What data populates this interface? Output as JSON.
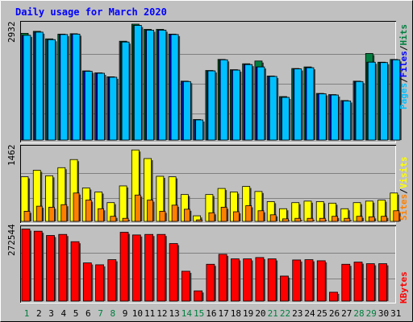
{
  "chart_data": [
    {
      "type": "bar",
      "title": "Daily usage for March 2020",
      "categories": [
        "1",
        "2",
        "3",
        "4",
        "5",
        "6",
        "7",
        "8",
        "9",
        "10",
        "11",
        "12",
        "13",
        "14",
        "15",
        "16",
        "17",
        "18",
        "19",
        "20",
        "21",
        "22",
        "23",
        "24",
        "25",
        "26",
        "27",
        "28",
        "29",
        "30",
        "31"
      ],
      "weekend_days": [
        "1",
        "7",
        "8",
        "14",
        "15",
        "21",
        "22",
        "28",
        "29"
      ],
      "ymax_label": "2932",
      "ylim": [
        0,
        2932
      ],
      "axis_label_parts": [
        "Pages",
        "Files",
        "Hits"
      ],
      "series": [
        {
          "name": "Hits",
          "color": "#008040",
          "values": [
            2700,
            2750,
            2560,
            2680,
            2690,
            1750,
            1700,
            1600,
            2500,
            2932,
            2800,
            2800,
            2680,
            1490,
            520,
            1760,
            2040,
            1780,
            1930,
            2000,
            1620,
            1100,
            1810,
            1850,
            1180,
            1150,
            1000,
            1490,
            2190,
            1970,
            2040
          ]
        },
        {
          "name": "Files",
          "color": "#0000ff",
          "values": [
            2650,
            2730,
            2540,
            2670,
            2680,
            1740,
            1690,
            1590,
            2480,
            2900,
            2780,
            2780,
            2670,
            1480,
            510,
            1750,
            2030,
            1770,
            1910,
            1850,
            1610,
            1080,
            1800,
            1830,
            1170,
            1140,
            990,
            1480,
            1970,
            1960,
            2030
          ]
        },
        {
          "name": "Pages",
          "color": "#00c0ff",
          "values": [
            2650,
            2730,
            2540,
            2670,
            2680,
            1740,
            1690,
            1590,
            2480,
            2900,
            2780,
            2780,
            2670,
            1480,
            510,
            1750,
            2030,
            1770,
            1910,
            1850,
            1610,
            1080,
            1800,
            1830,
            1170,
            1140,
            990,
            1480,
            1970,
            1960,
            2030
          ]
        }
      ]
    },
    {
      "type": "bar",
      "categories": [
        "1",
        "2",
        "3",
        "4",
        "5",
        "6",
        "7",
        "8",
        "9",
        "10",
        "11",
        "12",
        "13",
        "14",
        "15",
        "16",
        "17",
        "18",
        "19",
        "20",
        "21",
        "22",
        "23",
        "24",
        "25",
        "26",
        "27",
        "28",
        "29",
        "30",
        "31"
      ],
      "ymax_label": "1462",
      "ylim": [
        0,
        1462
      ],
      "axis_label_parts": [
        "Sites",
        "Visits"
      ],
      "series": [
        {
          "name": "Visits",
          "color": "#ffff00",
          "values": [
            880,
            1010,
            900,
            1060,
            1220,
            660,
            580,
            370,
            700,
            1410,
            1240,
            890,
            880,
            530,
            110,
            530,
            650,
            580,
            690,
            590,
            390,
            250,
            370,
            400,
            390,
            360,
            250,
            370,
            400,
            420,
            560
          ]
        },
        {
          "name": "Sites",
          "color": "#ff8000",
          "values": [
            200,
            300,
            280,
            330,
            560,
            420,
            250,
            100,
            60,
            520,
            420,
            200,
            320,
            240,
            30,
            170,
            280,
            190,
            310,
            210,
            130,
            50,
            60,
            60,
            60,
            100,
            60,
            100,
            90,
            100,
            210
          ]
        }
      ]
    },
    {
      "type": "bar",
      "categories": [
        "1",
        "2",
        "3",
        "4",
        "5",
        "6",
        "7",
        "8",
        "9",
        "10",
        "11",
        "12",
        "13",
        "14",
        "15",
        "16",
        "17",
        "18",
        "19",
        "20",
        "21",
        "22",
        "23",
        "24",
        "25",
        "26",
        "27",
        "28",
        "29",
        "30",
        "31"
      ],
      "ymax_label": "272544",
      "ylim": [
        0,
        272544
      ],
      "axis_label_parts": [
        "KBytes"
      ],
      "series": [
        {
          "name": "KBytes",
          "color": "#ff0000",
          "values": [
            268000,
            260000,
            244000,
            248000,
            221000,
            142000,
            135000,
            154000,
            256000,
            246000,
            248000,
            248000,
            214000,
            111000,
            38000,
            137000,
            174000,
            157000,
            157000,
            162000,
            157000,
            93000,
            153000,
            154000,
            150000,
            33000,
            137000,
            145000,
            139000,
            139000,
            0
          ]
        }
      ]
    }
  ]
}
